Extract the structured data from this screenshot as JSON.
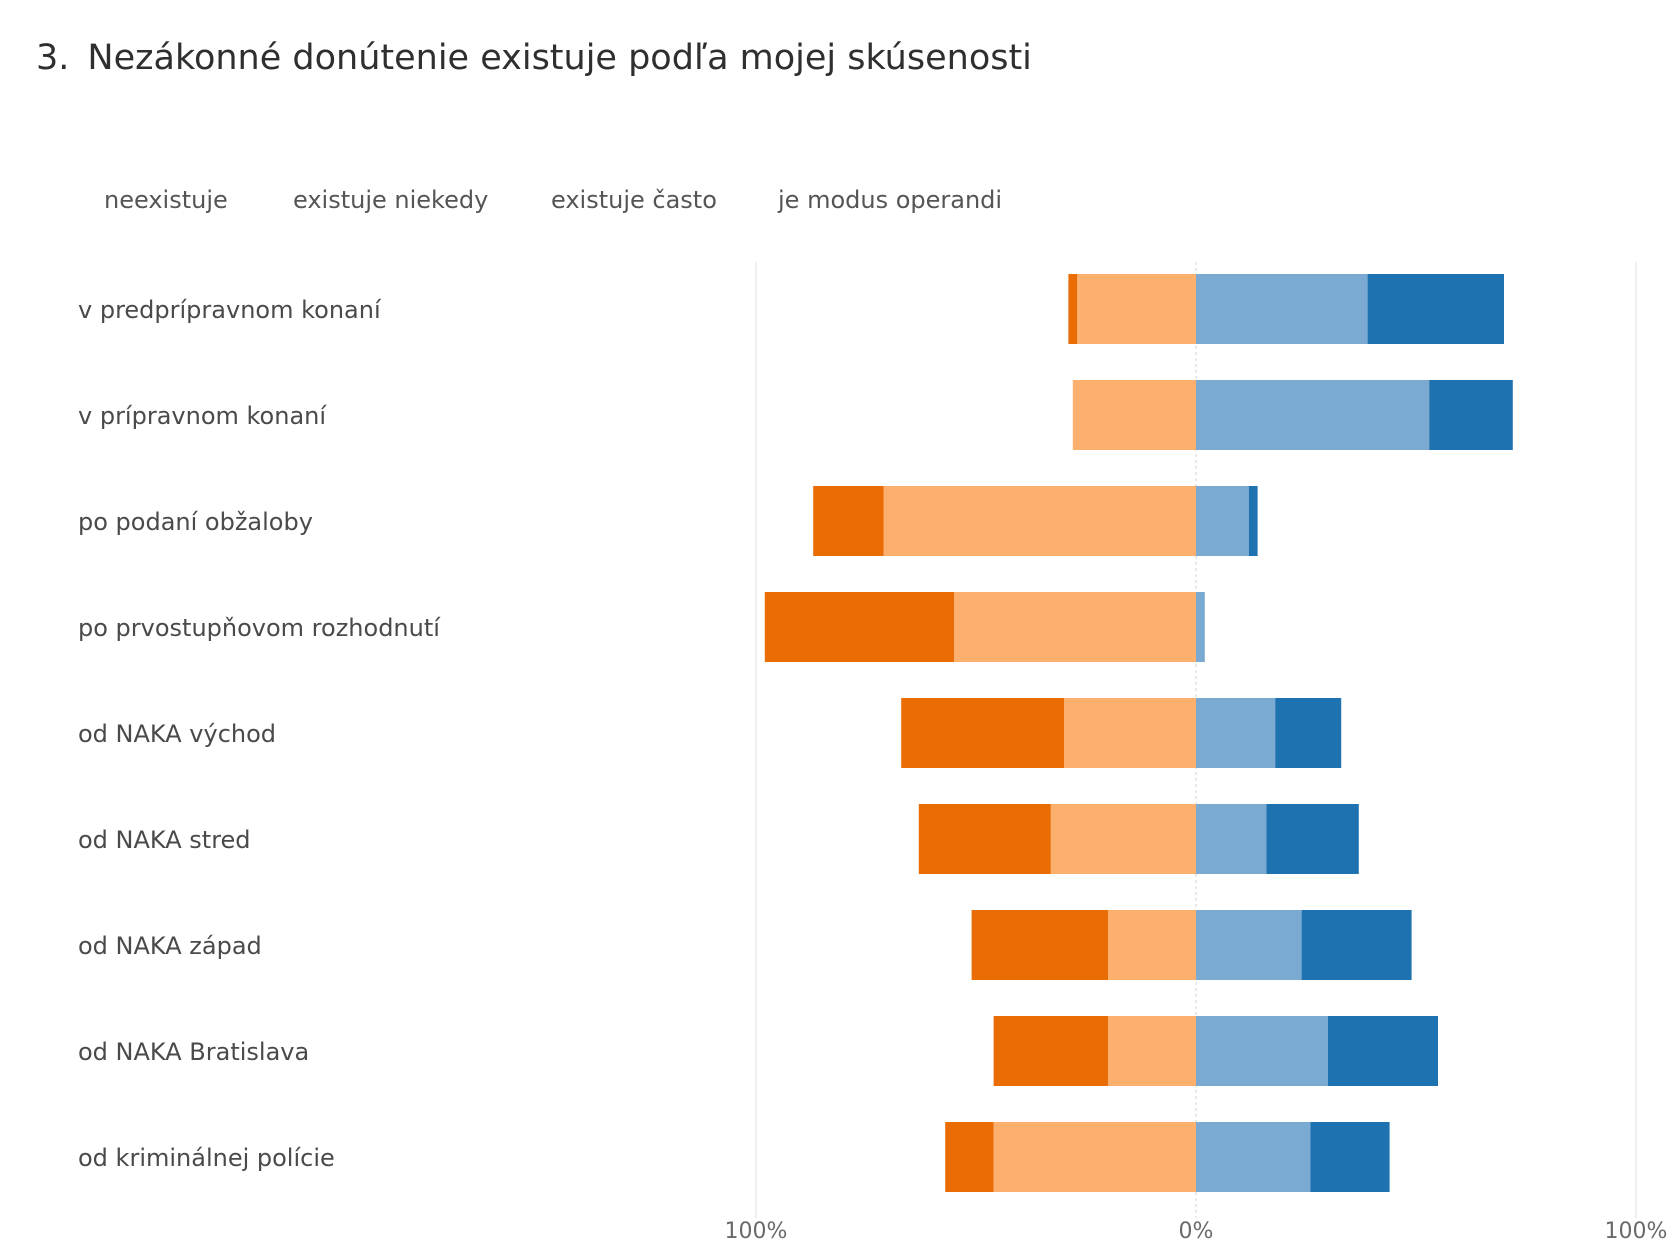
{
  "title": {
    "number": "3.",
    "text": "Nezákonné donútenie existuje podľa mojej skúsenosti"
  },
  "chart_data": {
    "type": "bar",
    "orientation": "horizontal",
    "stacking": "diverging",
    "xlim": [
      -100,
      100
    ],
    "xticks": [
      "100%",
      "0%",
      "100%"
    ],
    "grid": false,
    "legend_position": "top",
    "categories": [
      "v predprípravnom konaní",
      "v prípravnom konaní",
      "po podaní obžaloby",
      "po prvostupňovom rozhodnutí",
      "od NAKA východ",
      "od NAKA stred",
      "od NAKA západ",
      "od NAKA Bratislava",
      "od kriminálnej polície"
    ],
    "series": [
      {
        "name": "neexistuje",
        "side": "negative",
        "color": "#e96c05",
        "values": [
          2,
          0,
          16,
          43,
          37,
          30,
          31,
          26,
          11
        ]
      },
      {
        "name": "existuje niekedy",
        "side": "negative",
        "color": "#fdb06e",
        "values": [
          27,
          28,
          71,
          55,
          30,
          33,
          20,
          20,
          46
        ]
      },
      {
        "name": "existuje často",
        "side": "positive",
        "color": "#7aaad1",
        "values": [
          39,
          53,
          12,
          2,
          18,
          16,
          24,
          30,
          26
        ]
      },
      {
        "name": "je modus operandi",
        "side": "positive",
        "color": "#1f72b0",
        "values": [
          31,
          19,
          2,
          0,
          15,
          21,
          25,
          25,
          18
        ]
      }
    ]
  }
}
